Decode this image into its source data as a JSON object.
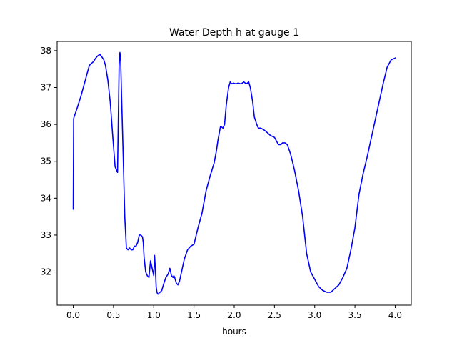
{
  "chart_data": {
    "type": "line",
    "title": "Water Depth h at gauge 1",
    "xlabel": "hours",
    "ylabel": "",
    "xlim": [
      -0.2,
      4.2
    ],
    "ylim": [
      31.1,
      38.25
    ],
    "xticks": [
      0.0,
      0.5,
      1.0,
      1.5,
      2.0,
      2.5,
      3.0,
      3.5,
      4.0
    ],
    "xtick_labels": [
      "0.0",
      "0.5",
      "1.0",
      "1.5",
      "2.0",
      "2.5",
      "3.0",
      "3.5",
      "4.0"
    ],
    "yticks": [
      32,
      33,
      34,
      35,
      36,
      37,
      38
    ],
    "ytick_labels": [
      "32",
      "33",
      "34",
      "35",
      "36",
      "37",
      "38"
    ],
    "grid": false,
    "series": [
      {
        "color": "#0000ff",
        "x": [
          0.0,
          0.005,
          0.01,
          0.05,
          0.1,
          0.15,
          0.2,
          0.25,
          0.28,
          0.3,
          0.33,
          0.35,
          0.38,
          0.4,
          0.43,
          0.46,
          0.49,
          0.52,
          0.55,
          0.57,
          0.58,
          0.59,
          0.6,
          0.62,
          0.64,
          0.66,
          0.68,
          0.7,
          0.72,
          0.74,
          0.76,
          0.78,
          0.8,
          0.82,
          0.84,
          0.86,
          0.87,
          0.88,
          0.89,
          0.9,
          0.92,
          0.94,
          0.96,
          0.98,
          1.0,
          1.01,
          1.02,
          1.03,
          1.04,
          1.05,
          1.06,
          1.07,
          1.08,
          1.1,
          1.12,
          1.15,
          1.18,
          1.2,
          1.22,
          1.24,
          1.25,
          1.26,
          1.28,
          1.3,
          1.32,
          1.35,
          1.38,
          1.42,
          1.46,
          1.5,
          1.55,
          1.6,
          1.65,
          1.7,
          1.75,
          1.78,
          1.8,
          1.83,
          1.86,
          1.88,
          1.9,
          1.93,
          1.95,
          1.97,
          1.99,
          2.02,
          2.05,
          2.08,
          2.1,
          2.12,
          2.15,
          2.18,
          2.2,
          2.23,
          2.25,
          2.28,
          2.3,
          2.33,
          2.37,
          2.4,
          2.45,
          2.5,
          2.55,
          2.58,
          2.6,
          2.63,
          2.66,
          2.7,
          2.75,
          2.8,
          2.85,
          2.9,
          2.95,
          3.0,
          3.05,
          3.1,
          3.15,
          3.2,
          3.25,
          3.3,
          3.35,
          3.4,
          3.45,
          3.5,
          3.55,
          3.6,
          3.65,
          3.7,
          3.75,
          3.8,
          3.85,
          3.9,
          3.95,
          4.0
        ],
        "y": [
          33.7,
          36.15,
          36.2,
          36.45,
          36.8,
          37.2,
          37.6,
          37.7,
          37.8,
          37.85,
          37.9,
          37.85,
          37.75,
          37.6,
          37.2,
          36.6,
          35.7,
          34.85,
          34.7,
          37.6,
          37.95,
          37.7,
          36.8,
          35.2,
          33.5,
          32.65,
          32.6,
          32.65,
          32.6,
          32.6,
          32.7,
          32.7,
          32.8,
          33.0,
          33.0,
          32.95,
          32.8,
          32.4,
          32.2,
          32.0,
          31.9,
          31.85,
          32.3,
          32.1,
          31.9,
          32.45,
          32.1,
          31.6,
          31.45,
          31.4,
          31.4,
          31.45,
          31.45,
          31.5,
          31.65,
          31.85,
          31.95,
          32.1,
          31.9,
          31.85,
          31.9,
          31.85,
          31.7,
          31.65,
          31.75,
          32.05,
          32.35,
          32.6,
          32.7,
          32.75,
          33.2,
          33.6,
          34.2,
          34.6,
          34.95,
          35.3,
          35.6,
          35.95,
          35.9,
          36.0,
          36.5,
          37.0,
          37.15,
          37.1,
          37.12,
          37.1,
          37.12,
          37.1,
          37.12,
          37.15,
          37.1,
          37.15,
          37.0,
          36.6,
          36.2,
          36.0,
          35.9,
          35.9,
          35.85,
          35.8,
          35.7,
          35.65,
          35.45,
          35.45,
          35.5,
          35.5,
          35.45,
          35.2,
          34.75,
          34.2,
          33.5,
          32.5,
          32.0,
          31.8,
          31.6,
          31.5,
          31.45,
          31.45,
          31.55,
          31.65,
          31.85,
          32.1,
          32.6,
          33.2,
          34.1,
          34.65,
          35.1,
          35.6,
          36.1,
          36.6,
          37.1,
          37.55,
          37.75,
          37.8
        ]
      }
    ]
  }
}
